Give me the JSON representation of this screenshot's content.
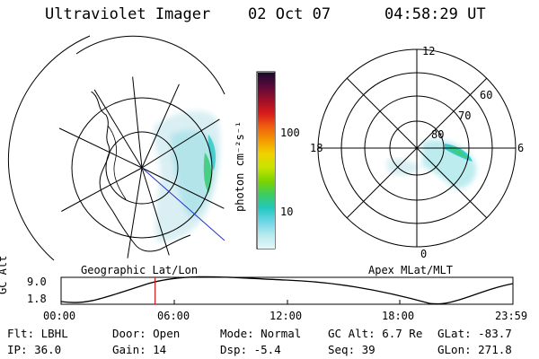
{
  "header": {
    "instrument": "Ultraviolet Imager",
    "date": "02 Oct 07",
    "time": "04:58:29 UT"
  },
  "colorbar": {
    "label": "photon cm⁻²s⁻¹",
    "ticks": [
      "100",
      "10"
    ],
    "colors": [
      "#1a0a2e",
      "#5a0a3a",
      "#9c0f2a",
      "#d71a1a",
      "#f06010",
      "#f49a00",
      "#f0d200",
      "#c8e400",
      "#7cd400",
      "#3ccc60",
      "#22c8c0",
      "#6ed6e6",
      "#b6eaee",
      "#e6f6f8"
    ]
  },
  "left_panel": {
    "caption": "Geographic Lat/Lon"
  },
  "right_panel": {
    "caption": "Apex MLat/MLT",
    "mlt_labels": {
      "top": "12",
      "left": "18",
      "right": "6",
      "bottom": "0"
    },
    "lat_labels": [
      "60",
      "70",
      "80"
    ]
  },
  "timeline": {
    "ylabel": "GC Alt",
    "yticks": [
      "9.0",
      "1.8"
    ],
    "xticks": [
      "00:00",
      "06:00",
      "12:00",
      "18:00",
      "23:59"
    ],
    "current_time_fraction": 0.208
  },
  "info": {
    "flt": "Flt: LBHL",
    "ip": "IP: 36.0",
    "door": "Door: Open",
    "gain": "Gain: 14",
    "mode": "Mode: Normal",
    "dsp": "Dsp:    -5.4",
    "gcalt": "GC Alt: 6.7 Re",
    "seq": "Seq: 39",
    "glat": "GLat:  -83.7",
    "glon": "GLon: 271.8"
  }
}
